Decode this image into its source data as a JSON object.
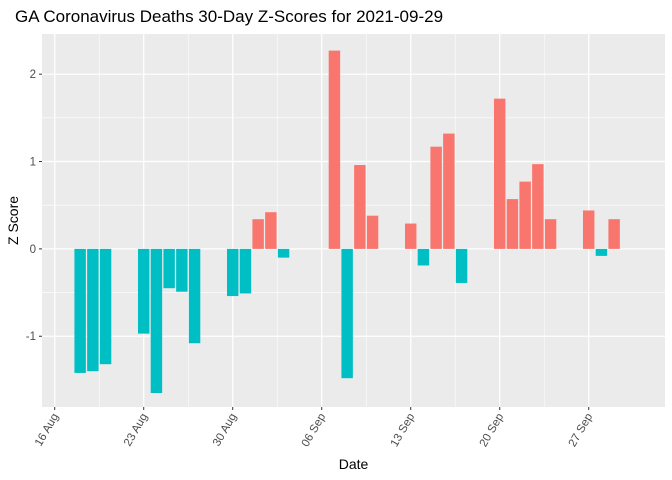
{
  "chart_data": {
    "type": "bar",
    "title": "GA Coronavirus Deaths 30-Day Z-Scores for 2021-09-29",
    "xlabel": "Date",
    "ylabel": "Z Score",
    "x_range": [
      "2021-08-15",
      "2021-10-03"
    ],
    "ylim": [
      -1.81,
      2.46
    ],
    "y_ticks": [
      -1,
      0,
      1,
      2
    ],
    "y_tick_labels": [
      "-1",
      "0",
      "1",
      "2"
    ],
    "x_ticks": [
      "2021-08-16",
      "2021-08-23",
      "2021-08-30",
      "2021-09-06",
      "2021-09-13",
      "2021-09-20",
      "2021-09-27"
    ],
    "x_tick_labels": [
      "16 Aug",
      "23 Aug",
      "30 Aug",
      "06 Sep",
      "13 Sep",
      "20 Sep",
      "27 Sep"
    ],
    "positive_color": "#F8766D",
    "negative_color": "#00BFC4",
    "panel_color": "#EBEBEB",
    "grid": true,
    "legend": "none",
    "bars": [
      {
        "date": "2021-08-18",
        "value": -1.42
      },
      {
        "date": "2021-08-19",
        "value": -1.4
      },
      {
        "date": "2021-08-20",
        "value": -1.32
      },
      {
        "date": "2021-08-23",
        "value": -0.97
      },
      {
        "date": "2021-08-24",
        "value": -1.65
      },
      {
        "date": "2021-08-25",
        "value": -0.45
      },
      {
        "date": "2021-08-26",
        "value": -0.49
      },
      {
        "date": "2021-08-27",
        "value": -1.08
      },
      {
        "date": "2021-08-30",
        "value": -0.54
      },
      {
        "date": "2021-08-31",
        "value": -0.51
      },
      {
        "date": "2021-09-01",
        "value": 0.34
      },
      {
        "date": "2021-09-02",
        "value": 0.42
      },
      {
        "date": "2021-09-03",
        "value": -0.1
      },
      {
        "date": "2021-09-07",
        "value": 2.27
      },
      {
        "date": "2021-09-08",
        "value": -1.48
      },
      {
        "date": "2021-09-09",
        "value": 0.96
      },
      {
        "date": "2021-09-10",
        "value": 0.38
      },
      {
        "date": "2021-09-13",
        "value": 0.29
      },
      {
        "date": "2021-09-14",
        "value": -0.19
      },
      {
        "date": "2021-09-15",
        "value": 1.17
      },
      {
        "date": "2021-09-16",
        "value": 1.32
      },
      {
        "date": "2021-09-17",
        "value": -0.39
      },
      {
        "date": "2021-09-20",
        "value": 1.72
      },
      {
        "date": "2021-09-21",
        "value": 0.57
      },
      {
        "date": "2021-09-22",
        "value": 0.77
      },
      {
        "date": "2021-09-23",
        "value": 0.97
      },
      {
        "date": "2021-09-24",
        "value": 0.34
      },
      {
        "date": "2021-09-27",
        "value": 0.44
      },
      {
        "date": "2021-09-28",
        "value": -0.08
      },
      {
        "date": "2021-09-29",
        "value": 0.34
      }
    ]
  }
}
